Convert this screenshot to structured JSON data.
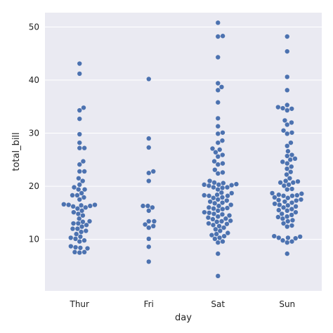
{
  "chart_data": {
    "type": "scatter",
    "subtype": "swarm",
    "title": "",
    "xlabel": "day",
    "ylabel": "total_bill",
    "categories": [
      "Thur",
      "Fri",
      "Sat",
      "Sun"
    ],
    "yticks": [
      10,
      20,
      30,
      40,
      50
    ],
    "ylim": [
      0.3,
      52.7
    ],
    "grid": "y-major",
    "background": "#eaeaf2",
    "point_color": "#4c72b0",
    "values": {
      "Thur": [
        43.1,
        41.2,
        34.8,
        34.3,
        32.7,
        29.8,
        28.2,
        27.2,
        27.2,
        24.7,
        24.1,
        22.8,
        22.8,
        21.5,
        21.0,
        20.3,
        19.8,
        19.4,
        19.4,
        18.7,
        18.3,
        18.3,
        17.9,
        17.5,
        16.5,
        16.6,
        16.4,
        16.3,
        16.2,
        16.0,
        16.5,
        15.8,
        15.4,
        15.1,
        14.8,
        14.5,
        13.9,
        13.4,
        13.3,
        13.0,
        13.0,
        12.7,
        12.4,
        12.0,
        12.0,
        11.6,
        11.4,
        11.0,
        10.5,
        10.3,
        10.1,
        9.8,
        9.6,
        8.7,
        8.5,
        8.4,
        8.3,
        7.6,
        7.6,
        7.5
      ],
      "Fri": [
        40.2,
        29.0,
        27.3,
        22.8,
        22.5,
        21.0,
        16.3,
        16.3,
        16.0,
        15.4,
        13.4,
        13.4,
        12.8,
        12.5,
        12.2,
        10.1,
        8.6,
        5.8
      ],
      "Sat": [
        50.8,
        48.3,
        48.2,
        44.3,
        39.4,
        38.7,
        38.1,
        35.8,
        32.8,
        31.3,
        30.1,
        29.9,
        28.6,
        28.2,
        27.1,
        26.9,
        26.4,
        25.9,
        25.6,
        24.7,
        24.3,
        24.1,
        23.1,
        22.6,
        22.4,
        21.0,
        20.7,
        20.6,
        20.4,
        20.3,
        20.3,
        20.2,
        20.1,
        19.8,
        19.8,
        19.7,
        19.4,
        18.8,
        18.7,
        18.4,
        18.3,
        18.2,
        18.2,
        17.9,
        17.8,
        17.5,
        17.3,
        17.1,
        16.9,
        16.8,
        16.5,
        16.3,
        16.0,
        15.9,
        15.8,
        15.7,
        15.4,
        15.1,
        15.0,
        14.8,
        14.7,
        14.5,
        14.3,
        14.1,
        13.9,
        13.8,
        13.5,
        13.4,
        13.3,
        13.0,
        12.9,
        12.7,
        12.5,
        12.2,
        11.9,
        11.6,
        11.2,
        11.0,
        10.8,
        10.6,
        10.3,
        10.1,
        9.6,
        9.4,
        7.3,
        3.1
      ],
      "Sun": [
        48.2,
        45.4,
        40.6,
        38.1,
        35.3,
        34.9,
        34.7,
        34.6,
        34.3,
        32.4,
        32.0,
        31.6,
        30.5,
        30.1,
        29.9,
        28.2,
        27.6,
        26.6,
        25.9,
        25.7,
        25.2,
        25.0,
        24.6,
        24.3,
        23.7,
        23.3,
        22.7,
        22.2,
        21.5,
        21.0,
        20.9,
        20.7,
        20.7,
        20.3,
        20.1,
        19.5,
        19.4,
        18.7,
        18.6,
        18.4,
        18.3,
        18.2,
        18.2,
        17.9,
        17.8,
        17.5,
        17.4,
        17.3,
        17.1,
        16.9,
        16.7,
        16.5,
        16.4,
        16.2,
        16.0,
        15.7,
        15.5,
        15.4,
        15.1,
        14.8,
        14.6,
        14.3,
        14.2,
        13.9,
        13.6,
        13.4,
        13.0,
        12.6,
        12.4,
        10.6,
        10.5,
        10.3,
        10.3,
        10.2,
        9.8,
        9.6,
        9.4,
        7.3
      ]
    }
  }
}
